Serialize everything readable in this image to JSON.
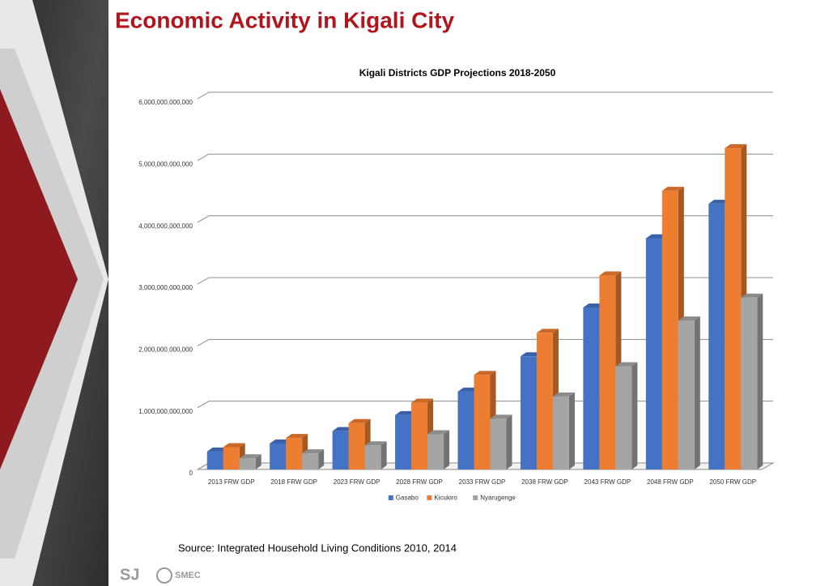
{
  "slide_title": "Economic Activity in Kigali City",
  "source": "Source: Integrated Household Living Conditions 2010, 2014",
  "logo": [
    "SJ",
    "SMEC"
  ],
  "chart_data": {
    "type": "bar3d",
    "title": "Kigali Districts GDP Projections 2018-2050",
    "categories": [
      "2013 FRW GDP",
      "2018 FRW GDP",
      "2023 FRW GDP",
      "2028 FRW GDP",
      "2033 FRW GDP",
      "2038 FRW GDP",
      "2043 FRW GDP",
      "2048 FRW GDP",
      "2050 FRW GDP"
    ],
    "series": [
      {
        "name": "Gasabo",
        "color": "#4472c4",
        "values": [
          290000000000,
          420000000000,
          620000000000,
          880000000000,
          1260000000000,
          1830000000000,
          2620000000000,
          3740000000000,
          4300000000000
        ]
      },
      {
        "name": "Kicukiro",
        "color": "#ed7d31",
        "values": [
          360000000000,
          510000000000,
          750000000000,
          1080000000000,
          1530000000000,
          2210000000000,
          3140000000000,
          4510000000000,
          5200000000000
        ]
      },
      {
        "name": "Nyarugenge",
        "color": "#a5a5a5",
        "values": [
          180000000000,
          260000000000,
          390000000000,
          570000000000,
          820000000000,
          1180000000000,
          1670000000000,
          2410000000000,
          2780000000000
        ]
      }
    ],
    "ylim": [
      0,
      6000000000000
    ],
    "yticks": [
      0,
      {
        "value": 1000000000000,
        "label": "1,000,000,000,000"
      },
      {
        "value": 2000000000000,
        "label": "2,000,000,000,000"
      },
      {
        "value": 3000000000000,
        "label": "3,000,000,000,000"
      },
      {
        "value": 4000000000000,
        "label": "4,000,000,000,000"
      },
      {
        "value": 5000000000000,
        "label": "5,000,000,000,000"
      },
      {
        "value": 6000000000000,
        "label": "6,000,000,000,000"
      }
    ],
    "grid": true,
    "legend": "bottom"
  }
}
